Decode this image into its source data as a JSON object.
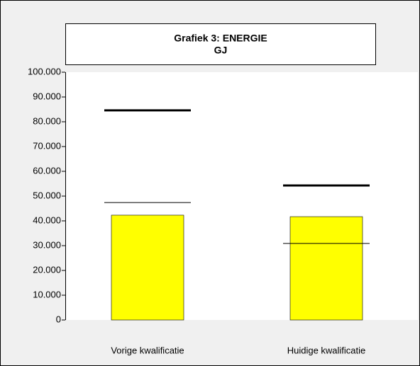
{
  "chart_data": {
    "type": "bar",
    "title": "Grafiek 3: ENERGIE",
    "subtitle": "GJ",
    "categories": [
      "Vorige kwalificatie",
      "Huidige kwalificatie"
    ],
    "values": [
      42300,
      41700
    ],
    "color": "#ffff00",
    "lines": [
      {
        "color": "#000000",
        "width": 3,
        "values": [
          84600,
          54300
        ]
      },
      {
        "color": "#000000",
        "width": 1,
        "values": [
          47400,
          30900
        ]
      }
    ],
    "ylim": [
      0,
      100000
    ],
    "yticks": [
      0,
      {
        "value": 10000,
        "label": "10.000"
      },
      {
        "value": 20000,
        "label": "20.000"
      },
      {
        "value": 30000,
        "label": "30.000"
      },
      {
        "value": 40000,
        "label": "40.000"
      },
      {
        "value": 50000,
        "label": "50.000"
      },
      {
        "value": 60000,
        "label": "60.000"
      },
      {
        "value": 70000,
        "label": "70.000"
      },
      {
        "value": 80000,
        "label": "80.000"
      },
      {
        "value": 90000,
        "label": "90.000"
      },
      {
        "value": 100000,
        "label": "100.000"
      }
    ],
    "grid": false
  }
}
